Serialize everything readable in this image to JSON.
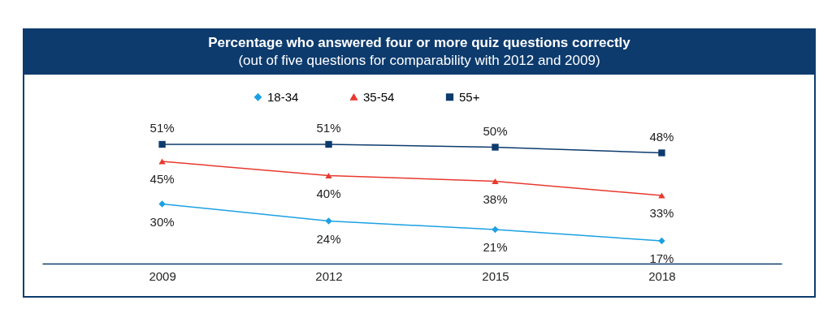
{
  "chart_data": {
    "type": "line",
    "title": "Percentage who answered four or more quiz questions correctly",
    "subtitle": "(out of five questions for comparability with 2012 and 2009)",
    "categories": [
      "2009",
      "2012",
      "2015",
      "2018"
    ],
    "series": [
      {
        "name": "18-34",
        "color": "#1ba1e2",
        "marker": "diamond",
        "values": [
          30,
          24,
          21,
          17
        ],
        "value_labels": [
          "30%",
          "24%",
          "21%",
          "17%"
        ]
      },
      {
        "name": "35-54",
        "color": "#e8392f",
        "marker": "triangle",
        "values": [
          45,
          40,
          38,
          33
        ],
        "value_labels": [
          "45%",
          "40%",
          "38%",
          "33%"
        ]
      },
      {
        "name": "55+",
        "color": "#0d3b6e",
        "marker": "square",
        "values": [
          51,
          51,
          50,
          48
        ],
        "value_labels": [
          "51%",
          "51%",
          "50%",
          "48%"
        ]
      }
    ],
    "legend": "top",
    "grid": false
  }
}
